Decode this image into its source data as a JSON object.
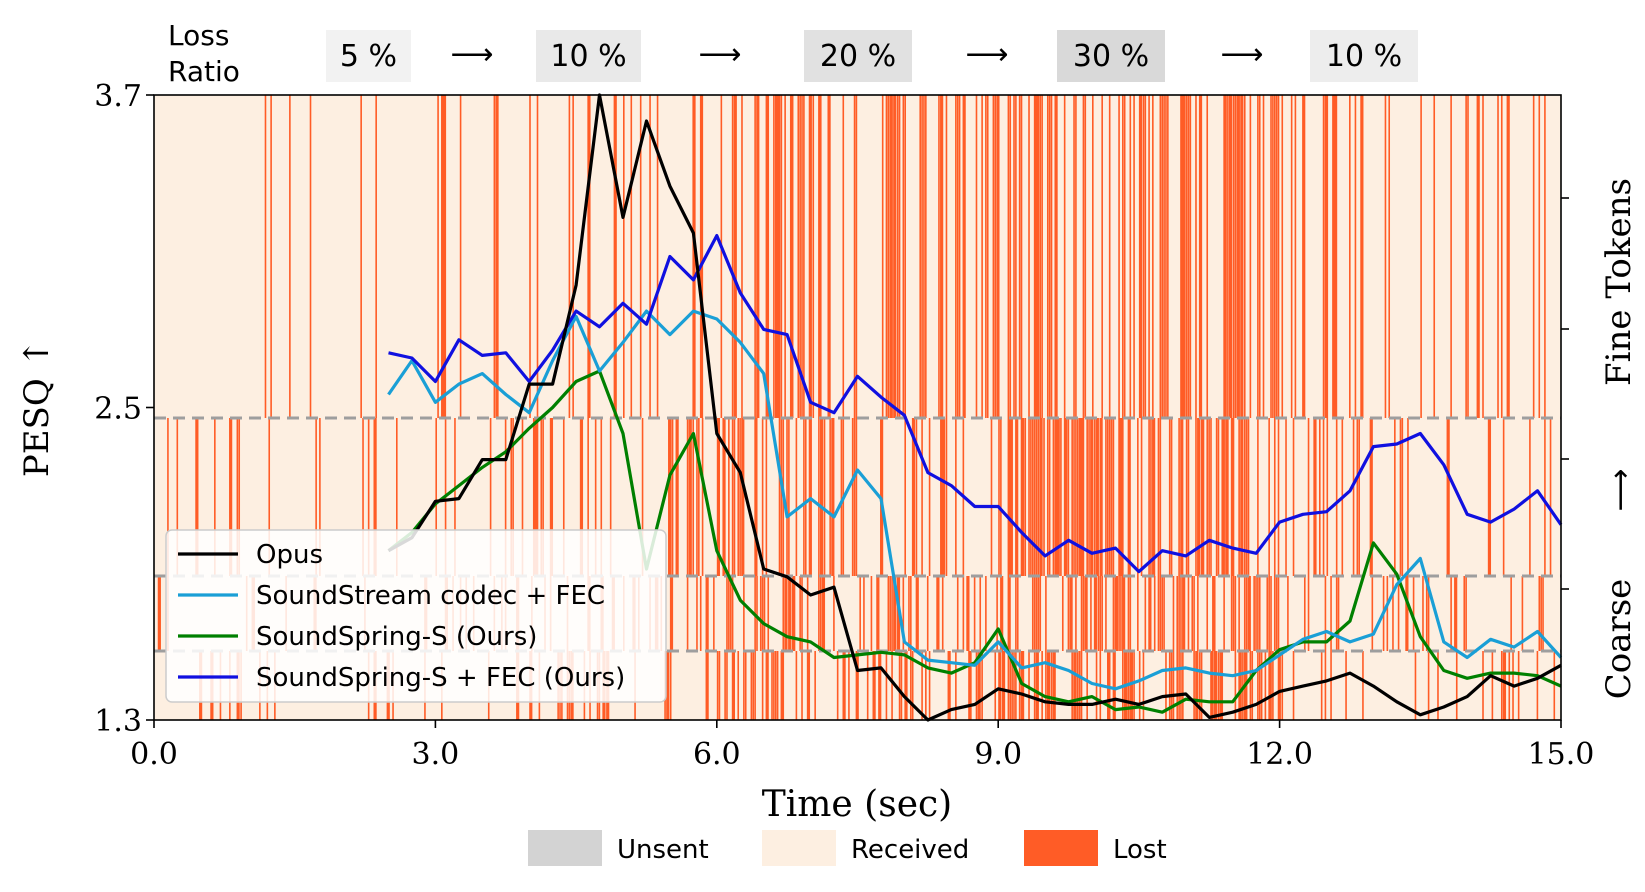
{
  "header": {
    "loss_label_line1": "Loss",
    "loss_label_line2": "Ratio",
    "stages": [
      {
        "label": "5 %",
        "color": "#f2f2f2"
      },
      {
        "label": "10 %",
        "color": "#e9e9e9"
      },
      {
        "label": "20 %",
        "color": "#e1e1e1"
      },
      {
        "label": "30 %",
        "color": "#d9d9d9"
      },
      {
        "label": "10 %",
        "color": "#ededed"
      }
    ],
    "arrow": "⟶"
  },
  "colors": {
    "received": "#fdefe1",
    "lost": "#ff5c26",
    "unsent": "#d3d3d3",
    "dashed": "#9e9e9e"
  },
  "chart_data": {
    "type": "line",
    "xlabel": "Time (sec)",
    "ylabel": "PESQ ↑",
    "y2label_coarse": "Coarse",
    "y2label_arrow": "⟶",
    "y2label_fine": "Fine Tokens",
    "xlim": [
      0.0,
      15.0
    ],
    "ylim": [
      1.3,
      3.7
    ],
    "xticks": [
      0.0,
      3.0,
      6.0,
      9.0,
      12.0,
      15.0
    ],
    "xtick_labels": [
      "0.0",
      "3.0",
      "6.0",
      "9.0",
      "12.0",
      "15.0"
    ],
    "yticks": [
      1.3,
      2.5,
      3.7
    ],
    "ytick_labels": [
      "1.3",
      "2.5",
      "3.7"
    ],
    "token_levels": 4,
    "loss_stage_boundaries_sec": [
      0,
      3,
      6,
      9,
      12,
      15
    ],
    "loss_stage_ratios": [
      0.05,
      0.1,
      0.2,
      0.3,
      0.1
    ],
    "series": [
      {
        "name": "Opus",
        "color": "#000000",
        "x": [
          2.5,
          2.75,
          3.0,
          3.25,
          3.5,
          3.75,
          4.0,
          4.25,
          4.5,
          4.75,
          5.0,
          5.25,
          5.5,
          5.75,
          6.0,
          6.25,
          6.5,
          6.75,
          7.0,
          7.25,
          7.5,
          7.75,
          8.0,
          8.25,
          8.5,
          8.75,
          9.0,
          9.25,
          9.5,
          9.75,
          10.0,
          10.25,
          10.5,
          10.75,
          11.0,
          11.25,
          11.5,
          11.75,
          12.0,
          12.25,
          12.5,
          12.75,
          13.0,
          13.25,
          13.5,
          13.75,
          14.0,
          14.25,
          14.5,
          14.75,
          15.0
        ],
        "y": [
          1.95,
          2.0,
          2.14,
          2.15,
          2.3,
          2.3,
          2.59,
          2.59,
          2.97,
          3.7,
          3.23,
          3.6,
          3.35,
          3.17,
          2.4,
          2.25,
          1.88,
          1.85,
          1.78,
          1.81,
          1.49,
          1.5,
          1.39,
          1.3,
          1.34,
          1.36,
          1.42,
          1.4,
          1.37,
          1.36,
          1.36,
          1.38,
          1.36,
          1.39,
          1.4,
          1.31,
          1.33,
          1.36,
          1.41,
          1.43,
          1.45,
          1.48,
          1.43,
          1.37,
          1.32,
          1.35,
          1.39,
          1.47,
          1.43,
          1.46,
          1.51
        ]
      },
      {
        "name": "SoundStream codec + FEC",
        "color": "#1a9fd6",
        "x": [
          2.5,
          2.75,
          3.0,
          3.25,
          3.5,
          3.75,
          4.0,
          4.25,
          4.5,
          4.75,
          5.0,
          5.25,
          5.5,
          5.75,
          6.0,
          6.25,
          6.5,
          6.75,
          7.0,
          7.25,
          7.5,
          7.75,
          8.0,
          8.25,
          8.5,
          8.75,
          9.0,
          9.25,
          9.5,
          9.75,
          10.0,
          10.25,
          10.5,
          10.75,
          11.0,
          11.25,
          11.5,
          11.75,
          12.0,
          12.25,
          12.5,
          12.75,
          13.0,
          13.25,
          13.5,
          13.75,
          14.0,
          14.25,
          14.5,
          14.75,
          15.0
        ],
        "y": [
          2.55,
          2.68,
          2.52,
          2.59,
          2.63,
          2.55,
          2.48,
          2.68,
          2.85,
          2.64,
          2.75,
          2.87,
          2.78,
          2.87,
          2.84,
          2.75,
          2.63,
          2.08,
          2.15,
          2.08,
          2.26,
          2.15,
          1.6,
          1.53,
          1.52,
          1.51,
          1.6,
          1.5,
          1.52,
          1.49,
          1.44,
          1.42,
          1.45,
          1.49,
          1.5,
          1.48,
          1.47,
          1.49,
          1.55,
          1.61,
          1.64,
          1.6,
          1.63,
          1.82,
          1.92,
          1.6,
          1.54,
          1.61,
          1.58,
          1.64,
          1.54
        ]
      },
      {
        "name": "SoundSpring-S (Ours)",
        "color": "#008000",
        "x": [
          2.5,
          2.75,
          3.0,
          3.25,
          3.5,
          3.75,
          4.0,
          4.25,
          4.5,
          4.75,
          5.0,
          5.25,
          5.5,
          5.75,
          6.0,
          6.25,
          6.5,
          6.75,
          7.0,
          7.25,
          7.5,
          7.75,
          8.0,
          8.25,
          8.5,
          8.75,
          9.0,
          9.25,
          9.5,
          9.75,
          10.0,
          10.25,
          10.5,
          10.75,
          11.0,
          11.25,
          11.5,
          11.75,
          12.0,
          12.25,
          12.5,
          12.75,
          13.0,
          13.25,
          13.5,
          13.75,
          14.0,
          14.25,
          14.5,
          14.75,
          15.0
        ],
        "y": [
          1.95,
          2.02,
          2.13,
          2.2,
          2.27,
          2.33,
          2.42,
          2.5,
          2.6,
          2.64,
          2.4,
          1.88,
          2.24,
          2.4,
          1.95,
          1.76,
          1.67,
          1.62,
          1.6,
          1.54,
          1.55,
          1.56,
          1.55,
          1.5,
          1.48,
          1.52,
          1.65,
          1.44,
          1.39,
          1.37,
          1.39,
          1.34,
          1.35,
          1.33,
          1.38,
          1.37,
          1.37,
          1.49,
          1.57,
          1.6,
          1.6,
          1.68,
          1.98,
          1.86,
          1.62,
          1.49,
          1.46,
          1.48,
          1.48,
          1.47,
          1.43
        ]
      },
      {
        "name": "SoundSpring-S + FEC (Ours)",
        "color": "#1010e0",
        "x": [
          2.5,
          2.75,
          3.0,
          3.25,
          3.5,
          3.75,
          4.0,
          4.25,
          4.5,
          4.75,
          5.0,
          5.25,
          5.5,
          5.75,
          6.0,
          6.25,
          6.5,
          6.75,
          7.0,
          7.25,
          7.5,
          7.75,
          8.0,
          8.25,
          8.5,
          8.75,
          9.0,
          9.25,
          9.5,
          9.75,
          10.0,
          10.25,
          10.5,
          10.75,
          11.0,
          11.25,
          11.5,
          11.75,
          12.0,
          12.25,
          12.5,
          12.75,
          13.0,
          13.25,
          13.5,
          13.75,
          14.0,
          14.25,
          14.5,
          14.75,
          15.0
        ],
        "y": [
          2.71,
          2.69,
          2.6,
          2.76,
          2.7,
          2.71,
          2.6,
          2.72,
          2.87,
          2.81,
          2.9,
          2.82,
          3.08,
          2.99,
          3.16,
          2.94,
          2.8,
          2.78,
          2.52,
          2.48,
          2.62,
          2.54,
          2.47,
          2.25,
          2.2,
          2.12,
          2.12,
          2.02,
          1.93,
          1.99,
          1.94,
          1.96,
          1.87,
          1.95,
          1.93,
          1.99,
          1.96,
          1.94,
          2.06,
          2.09,
          2.1,
          2.18,
          2.35,
          2.36,
          2.4,
          2.28,
          2.09,
          2.06,
          2.11,
          2.18,
          2.05
        ]
      }
    ],
    "legend": {
      "placement": "lower-left",
      "items": [
        "Opus",
        "SoundStream codec + FEC",
        "SoundSpring-S (Ours)",
        "SoundSpring-S + FEC (Ours)"
      ]
    },
    "packet_legend": [
      "Unsent",
      "Received",
      "Lost"
    ]
  }
}
